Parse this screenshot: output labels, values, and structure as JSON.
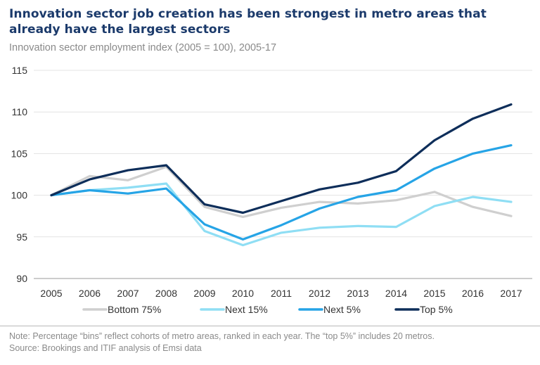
{
  "title": "Innovation sector job creation has been strongest in metro areas that already have the largest sectors",
  "subtitle": "Innovation sector employment index (2005 = 100), 2005-17",
  "note": "Note: Percentage “bins” reflect cohorts of metro areas, ranked in each year. The “top 5%” includes 20 metros.",
  "source": "Source: Brookings and ITIF analysis of Emsi data",
  "chart_data": {
    "type": "line",
    "x": [
      "2005",
      "2006",
      "2007",
      "2008",
      "2009",
      "2010",
      "2011",
      "2012",
      "2013",
      "2014",
      "2015",
      "2016",
      "2017"
    ],
    "ylim": [
      90,
      115
    ],
    "yticks": [
      "90",
      "95",
      "100",
      "105",
      "110",
      "115"
    ],
    "grid": true,
    "legend": "bottom",
    "series": [
      {
        "name": "Bottom 75%",
        "color": "#cfcfcf",
        "values": [
          100.0,
          102.3,
          101.8,
          103.4,
          98.6,
          97.4,
          98.5,
          99.2,
          99.0,
          99.4,
          100.4,
          98.6,
          97.5
        ]
      },
      {
        "name": "Next 15%",
        "color": "#8fdef4",
        "values": [
          100.0,
          100.6,
          100.9,
          101.4,
          95.7,
          94.0,
          95.5,
          96.1,
          96.3,
          96.2,
          98.7,
          99.8,
          99.2
        ]
      },
      {
        "name": "Next 5%",
        "color": "#26a4e6",
        "values": [
          100.0,
          100.6,
          100.2,
          100.8,
          96.5,
          94.7,
          96.4,
          98.4,
          99.8,
          100.6,
          103.2,
          105.0,
          106.0
        ]
      },
      {
        "name": "Top 5%",
        "color": "#0e2e5a",
        "values": [
          100.0,
          101.9,
          103.0,
          103.6,
          98.9,
          97.9,
          99.3,
          100.7,
          101.5,
          102.9,
          106.6,
          109.2,
          110.9
        ]
      }
    ]
  }
}
